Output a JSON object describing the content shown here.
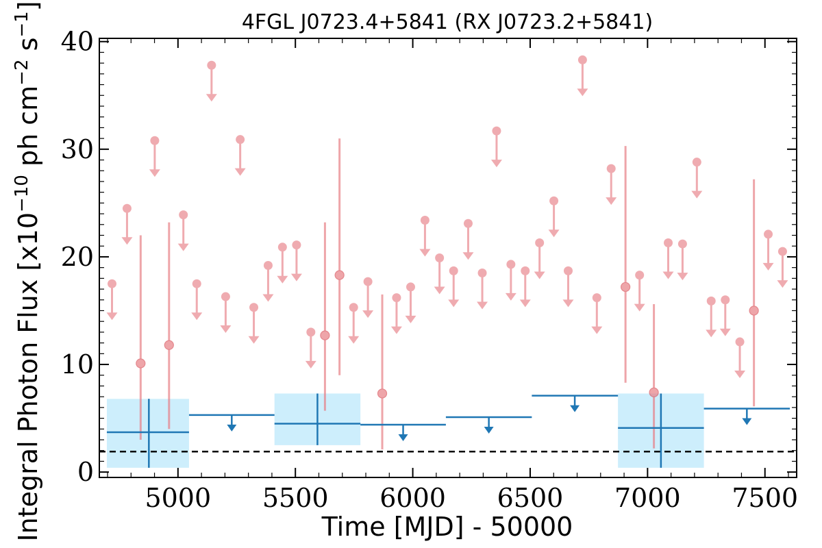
{
  "chart_data": {
    "type": "scatter",
    "title": "4FGL J0723.4+5841 (RX J0723.2+5841)",
    "xlabel": "Time [MJD] - 50000",
    "ylabel": "Integral Photon Flux [x10",
    "ylabel_exp1": "−10",
    "ylabel_mid": " ph cm",
    "ylabel_exp2": "−2",
    "ylabel_end": " s",
    "ylabel_exp3": "−1",
    "ylabel_close": "]",
    "xlim": [
      4665,
      7635
    ],
    "ylim": [
      -0.5,
      40.3
    ],
    "xticks": [
      5000,
      5500,
      6000,
      6500,
      7000,
      7500
    ],
    "yticks": [
      0,
      10,
      20,
      30,
      40
    ],
    "colors": {
      "short_bins": "#e87f86",
      "long_bins": "#1f77b4",
      "long_band": "#cdeefc",
      "threshold": "#000000"
    },
    "threshold_flux": 1.9,
    "short_bins_upper_limits": [
      {
        "x": 4719,
        "y": 17.5
      },
      {
        "x": 4783,
        "y": 24.5
      },
      {
        "x": 4901,
        "y": 30.8
      },
      {
        "x": 5023,
        "y": 23.9
      },
      {
        "x": 5080,
        "y": 17.5
      },
      {
        "x": 5143,
        "y": 37.8
      },
      {
        "x": 5203,
        "y": 16.3
      },
      {
        "x": 5265,
        "y": 30.9
      },
      {
        "x": 5323,
        "y": 15.3
      },
      {
        "x": 5384,
        "y": 19.2
      },
      {
        "x": 5445,
        "y": 20.9
      },
      {
        "x": 5505,
        "y": 21.1
      },
      {
        "x": 5566,
        "y": 13.0
      },
      {
        "x": 5748,
        "y": 15.3
      },
      {
        "x": 5809,
        "y": 17.7
      },
      {
        "x": 5931,
        "y": 16.2
      },
      {
        "x": 5991,
        "y": 17.2
      },
      {
        "x": 6052,
        "y": 23.4
      },
      {
        "x": 6114,
        "y": 19.9
      },
      {
        "x": 6174,
        "y": 18.7
      },
      {
        "x": 6236,
        "y": 23.1
      },
      {
        "x": 6296,
        "y": 18.5
      },
      {
        "x": 6357,
        "y": 31.7
      },
      {
        "x": 6418,
        "y": 19.3
      },
      {
        "x": 6479,
        "y": 18.7
      },
      {
        "x": 6540,
        "y": 21.3
      },
      {
        "x": 6601,
        "y": 25.2
      },
      {
        "x": 6662,
        "y": 18.7
      },
      {
        "x": 6723,
        "y": 38.3
      },
      {
        "x": 6784,
        "y": 16.2
      },
      {
        "x": 6845,
        "y": 28.2
      },
      {
        "x": 6966,
        "y": 18.3
      },
      {
        "x": 7088,
        "y": 21.3
      },
      {
        "x": 7149,
        "y": 21.2
      },
      {
        "x": 7210,
        "y": 28.8
      },
      {
        "x": 7271,
        "y": 15.9
      },
      {
        "x": 7331,
        "y": 16.0
      },
      {
        "x": 7393,
        "y": 12.1
      },
      {
        "x": 7514,
        "y": 22.1
      },
      {
        "x": 7575,
        "y": 20.5
      }
    ],
    "short_bins_detections": [
      {
        "x": 4841,
        "y": 10.1,
        "ylow": 3.0,
        "yhigh": 22.0
      },
      {
        "x": 4962,
        "y": 11.8,
        "ylow": 4.0,
        "yhigh": 23.2
      },
      {
        "x": 5626,
        "y": 12.7,
        "ylow": 5.7,
        "yhigh": 23.2
      },
      {
        "x": 5688,
        "y": 18.3,
        "ylow": 9.0,
        "yhigh": 31.0
      },
      {
        "x": 5870,
        "y": 7.3,
        "ylow": 2.1,
        "yhigh": 16.5
      },
      {
        "x": 6906,
        "y": 17.2,
        "ylow": 8.3,
        "yhigh": 30.3
      },
      {
        "x": 7027,
        "y": 7.4,
        "ylow": 2.2,
        "yhigh": 15.6
      },
      {
        "x": 7453,
        "y": 15.0,
        "ylow": 6.1,
        "yhigh": 27.2
      }
    ],
    "long_bins_detections": [
      {
        "x0": 4697,
        "x1": 5047,
        "xc": 4876,
        "y": 3.7,
        "ylow": 0.4,
        "yhigh": 6.8
      },
      {
        "x0": 5411,
        "x1": 5777,
        "xc": 5594,
        "y": 4.5,
        "ylow": 2.5,
        "yhigh": 7.3
      },
      {
        "x0": 6874,
        "x1": 7240,
        "xc": 7057,
        "y": 4.1,
        "ylow": 0.4,
        "yhigh": 7.3
      }
    ],
    "long_bins_upper_limits": [
      {
        "x0": 5047,
        "x1": 5411,
        "xc": 5229,
        "y": 5.3
      },
      {
        "x0": 5777,
        "x1": 6141,
        "xc": 5959,
        "y": 4.4
      },
      {
        "x0": 6141,
        "x1": 6507,
        "xc": 6324,
        "y": 5.1
      },
      {
        "x0": 6507,
        "x1": 6874,
        "xc": 6690,
        "y": 7.1
      },
      {
        "x0": 7240,
        "x1": 7606,
        "xc": 7423,
        "y": 5.9
      }
    ]
  }
}
